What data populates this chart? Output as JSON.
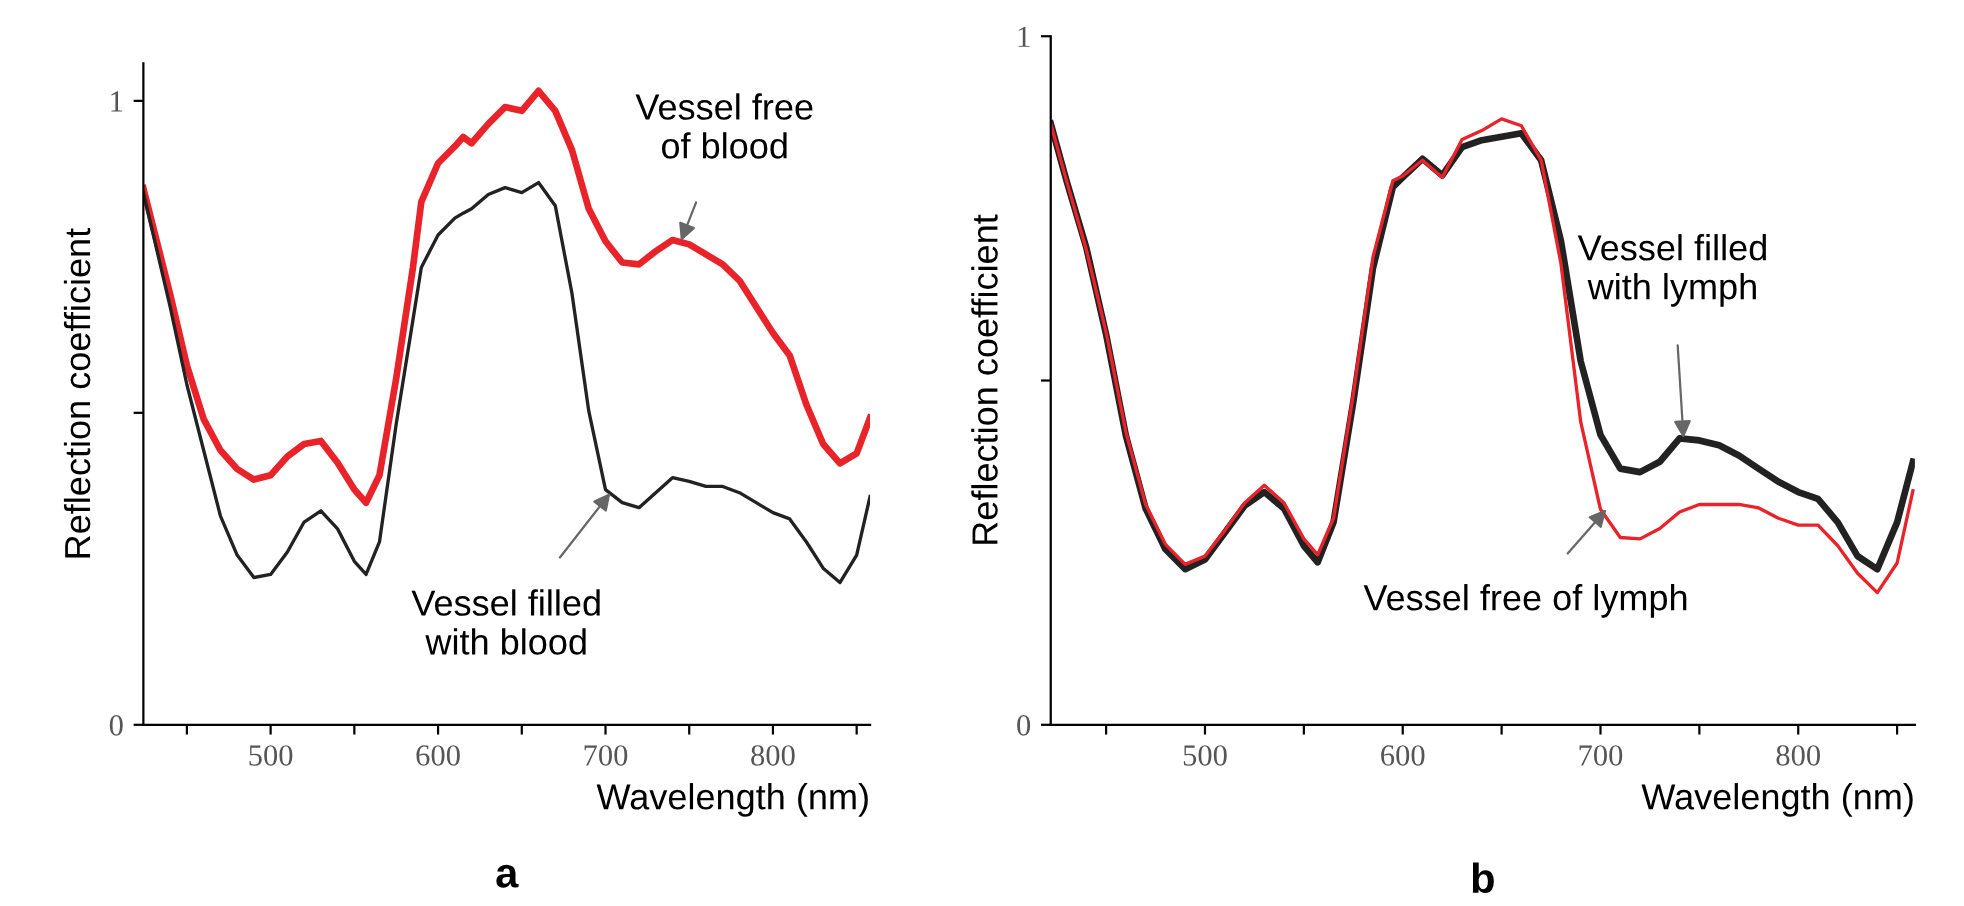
{
  "chart_data": [
    {
      "type": "line",
      "xlabel": "Wavelength (nm)",
      "ylabel": "Reflection coefficient",
      "xlim": [
        424,
        858
      ],
      "ylim": [
        0,
        1.06
      ],
      "xticks": [
        {
          "value": 450,
          "label": null
        },
        500,
        {
          "value": 550,
          "label": null
        },
        600,
        {
          "value": 650,
          "label": null
        },
        700,
        {
          "value": 750,
          "label": null
        },
        800,
        {
          "value": 850,
          "label": null
        }
      ],
      "yticks": [
        0,
        {
          "value": 0.5,
          "label": null
        },
        1
      ],
      "grid": false,
      "x": [
        424,
        440,
        450,
        460,
        470,
        480,
        490,
        500,
        510,
        520,
        530,
        540,
        550,
        557,
        565,
        575,
        585,
        590,
        600,
        610,
        615,
        620,
        630,
        640,
        650,
        660,
        670,
        680,
        690,
        700,
        710,
        720,
        730,
        740,
        750,
        760,
        770,
        780,
        790,
        800,
        810,
        820,
        830,
        840,
        850,
        858
      ],
      "series": [
        {
          "color": "#e8242a",
          "values": [
            0.86,
            0.69,
            0.576,
            0.49,
            0.44,
            0.41,
            0.393,
            0.4,
            0.43,
            0.45,
            0.455,
            0.42,
            0.377,
            0.356,
            0.4,
            0.555,
            0.733,
            0.838,
            0.9,
            0.927,
            0.942,
            0.932,
            0.963,
            0.99,
            0.984,
            1.016,
            0.984,
            0.921,
            0.827,
            0.775,
            0.741,
            0.738,
            0.759,
            0.777,
            0.77,
            0.754,
            0.738,
            0.712,
            0.67,
            0.628,
            0.592,
            0.513,
            0.45,
            0.419,
            0.435,
            0.492
          ]
        },
        {
          "color": "#222222",
          "values": [
            0.853,
            0.67,
            0.545,
            0.44,
            0.335,
            0.272,
            0.236,
            0.241,
            0.277,
            0.325,
            0.343,
            0.314,
            0.262,
            0.241,
            0.293,
            0.482,
            0.649,
            0.733,
            0.785,
            0.812,
            0.82,
            0.827,
            0.85,
            0.861,
            0.853,
            0.869,
            0.832,
            0.691,
            0.503,
            0.377,
            0.356,
            0.348,
            0.372,
            0.396,
            0.39,
            0.382,
            0.382,
            0.372,
            0.356,
            0.34,
            0.33,
            0.293,
            0.251,
            0.228,
            0.272,
            0.366
          ]
        }
      ],
      "annotations": [
        {
          "text": "Vessel free\nof blood",
          "x": 745,
          "y": 0.775
        },
        {
          "text": "Vessel filled\nwith blood",
          "x": 703,
          "y": 0.372
        },
        "a"
      ]
    },
    {
      "type": "line",
      "xlabel": "Wavelength (nm)",
      "ylabel": "Reflection coefficient",
      "xlim": [
        422,
        859
      ],
      "ylim": [
        0,
        1
      ],
      "xticks": [
        {
          "value": 450,
          "label": null
        },
        500,
        {
          "value": 550,
          "label": null
        },
        600,
        {
          "value": 650,
          "label": null
        },
        700,
        {
          "value": 750,
          "label": null
        },
        800,
        {
          "value": 850,
          "label": null
        }
      ],
      "yticks": [
        0,
        {
          "value": 0.5,
          "label": null
        },
        1
      ],
      "grid": false,
      "x": [
        422,
        430,
        440,
        450,
        460,
        470,
        480,
        490,
        500,
        510,
        520,
        530,
        540,
        550,
        557,
        565,
        575,
        585,
        595,
        600,
        610,
        620,
        630,
        640,
        650,
        660,
        670,
        680,
        690,
        700,
        710,
        720,
        730,
        740,
        750,
        760,
        770,
        780,
        790,
        800,
        810,
        820,
        830,
        840,
        850,
        858
      ],
      "series": [
        {
          "color": "#222222",
          "values": [
            0.873,
            0.79,
            0.693,
            0.567,
            0.42,
            0.314,
            0.255,
            0.226,
            0.24,
            0.279,
            0.318,
            0.338,
            0.314,
            0.26,
            0.236,
            0.294,
            0.469,
            0.664,
            0.781,
            0.795,
            0.822,
            0.798,
            0.839,
            0.849,
            0.854,
            0.859,
            0.82,
            0.703,
            0.528,
            0.421,
            0.372,
            0.367,
            0.382,
            0.416,
            0.413,
            0.406,
            0.391,
            0.372,
            0.353,
            0.338,
            0.328,
            0.294,
            0.245,
            0.226,
            0.294,
            0.382
          ]
        },
        {
          "color": "#e8242a",
          "values": [
            0.873,
            0.79,
            0.69,
            0.57,
            0.425,
            0.32,
            0.262,
            0.233,
            0.245,
            0.282,
            0.322,
            0.348,
            0.322,
            0.27,
            0.247,
            0.3,
            0.48,
            0.68,
            0.79,
            0.797,
            0.82,
            0.795,
            0.85,
            0.863,
            0.88,
            0.87,
            0.82,
            0.67,
            0.44,
            0.313,
            0.272,
            0.27,
            0.285,
            0.309,
            0.32,
            0.32,
            0.32,
            0.315,
            0.3,
            0.29,
            0.29,
            0.26,
            0.22,
            0.192,
            0.235,
            0.34
          ]
        }
      ],
      "annotations": [
        {
          "text": "Vessel filled\nwith lymph",
          "x": 742,
          "y": 0.416
        },
        {
          "text": "Vessel free of lymph",
          "x": 703,
          "y": 0.313
        },
        "b"
      ]
    }
  ]
}
